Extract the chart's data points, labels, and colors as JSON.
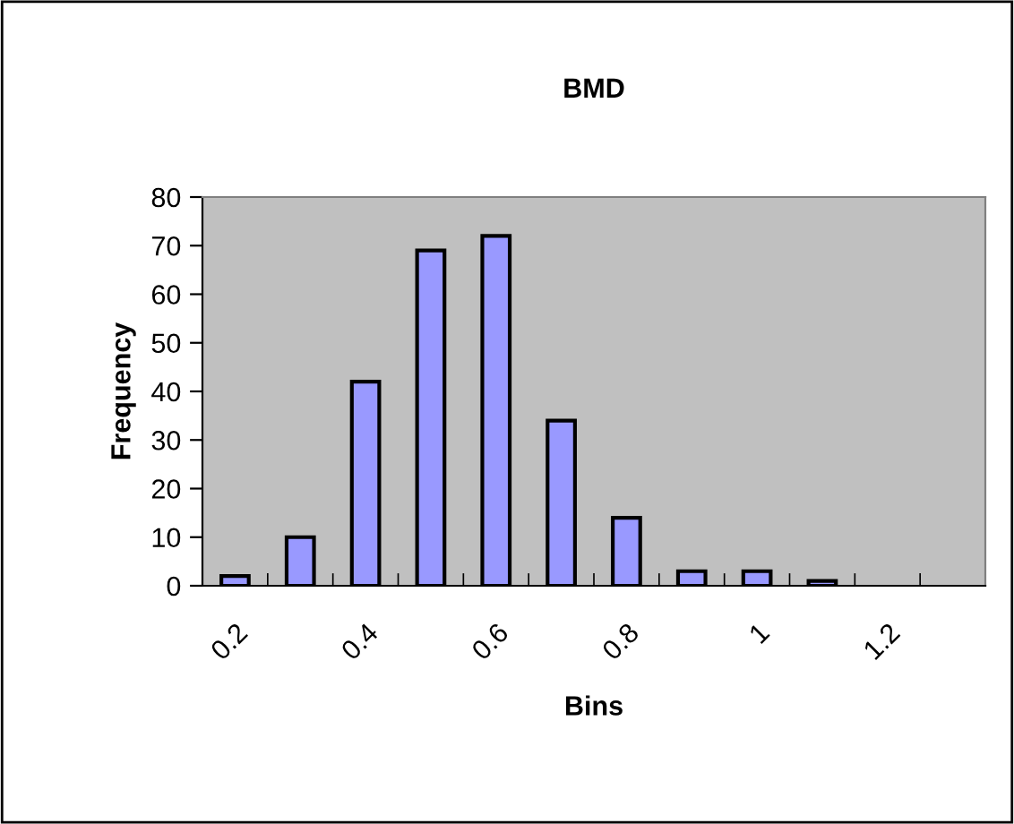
{
  "chart_data": {
    "type": "bar",
    "title": "BMD",
    "xlabel": "Bins",
    "ylabel": "Frequency",
    "categories": [
      "0.2",
      null,
      "0.4",
      null,
      "0.6",
      null,
      "0.8",
      null,
      "1",
      null,
      "1.2",
      null
    ],
    "values": [
      2,
      10,
      42,
      69,
      72,
      34,
      14,
      3,
      3,
      1,
      null,
      null
    ],
    "color": "#9999ff",
    "ylim": [
      0,
      80
    ],
    "yticks": [
      0,
      10,
      20,
      30,
      40,
      50,
      60,
      70,
      80
    ],
    "grid": false
  }
}
